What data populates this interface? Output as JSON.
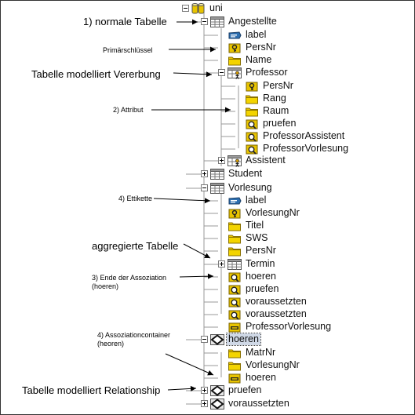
{
  "tree": [
    {
      "label": "uni",
      "icon": "database-icon",
      "toggle": "minus"
    },
    {
      "label": "Angestellte",
      "icon": "table-icon",
      "toggle": "minus"
    },
    {
      "label": "label",
      "icon": "label-tag-icon",
      "toggle": "none"
    },
    {
      "label": "PersNr",
      "icon": "key-icon",
      "toggle": "none"
    },
    {
      "label": "Name",
      "icon": "folder-icon",
      "toggle": "none"
    },
    {
      "label": "Professor",
      "icon": "inherited-table-icon",
      "toggle": "minus"
    },
    {
      "label": "PersNr",
      "icon": "key-icon",
      "toggle": "none"
    },
    {
      "label": "Rang",
      "icon": "folder-icon",
      "toggle": "none"
    },
    {
      "label": "Raum",
      "icon": "folder-icon",
      "toggle": "none"
    },
    {
      "label": "pruefen",
      "icon": "association-end-icon",
      "toggle": "none"
    },
    {
      "label": "ProfessorAssistent",
      "icon": "association-end-icon",
      "toggle": "none"
    },
    {
      "label": "ProfessorVorlesung",
      "icon": "association-end-icon",
      "toggle": "none"
    },
    {
      "label": "Assistent",
      "icon": "inherited-table-icon",
      "toggle": "plus"
    },
    {
      "label": "Student",
      "icon": "table-icon",
      "toggle": "plus"
    },
    {
      "label": "Vorlesung",
      "icon": "table-icon",
      "toggle": "minus"
    },
    {
      "label": "label",
      "icon": "label-tag-icon",
      "toggle": "none"
    },
    {
      "label": "VorlesungNr",
      "icon": "key-icon",
      "toggle": "none"
    },
    {
      "label": "Titel",
      "icon": "folder-icon",
      "toggle": "none"
    },
    {
      "label": "SWS",
      "icon": "folder-icon",
      "toggle": "none"
    },
    {
      "label": "PersNr",
      "icon": "folder-icon",
      "toggle": "none"
    },
    {
      "label": "Termin",
      "icon": "table-icon",
      "toggle": "plus"
    },
    {
      "label": "hoeren",
      "icon": "association-end-icon",
      "toggle": "none"
    },
    {
      "label": "pruefen",
      "icon": "association-end-icon",
      "toggle": "none"
    },
    {
      "label": "voraussetzten",
      "icon": "association-end-icon",
      "toggle": "none"
    },
    {
      "label": "voraussetzten",
      "icon": "association-end-icon",
      "toggle": "none"
    },
    {
      "label": "ProfessorVorlesung",
      "icon": "association-container-icon",
      "toggle": "none"
    },
    {
      "label": "hoeren",
      "icon": "relationship-icon",
      "toggle": "minus",
      "selected": true
    },
    {
      "label": "MatrNr",
      "icon": "folder-icon",
      "toggle": "none"
    },
    {
      "label": "VorlesungNr",
      "icon": "folder-icon",
      "toggle": "none"
    },
    {
      "label": "hoeren",
      "icon": "association-container-icon",
      "toggle": "none"
    },
    {
      "label": "pruefen",
      "icon": "relationship-icon",
      "toggle": "plus"
    },
    {
      "label": "voraussetzten",
      "icon": "relationship-icon",
      "toggle": "plus"
    }
  ],
  "annotations": [
    {
      "text": "1) normale Tabelle"
    },
    {
      "text": "Primärschlüssel"
    },
    {
      "text": "Tabelle modelliert Vererbung"
    },
    {
      "text": "2) Attribut"
    },
    {
      "text": "4) Ettikette"
    },
    {
      "text": "aggregierte Tabelle"
    },
    {
      "text": "3) Ende der Assoziation\n(hoeren)"
    },
    {
      "text": "4) Assoziationcontainer\n(heoren)"
    },
    {
      "text": "Tabelle modelliert Relationship"
    }
  ]
}
